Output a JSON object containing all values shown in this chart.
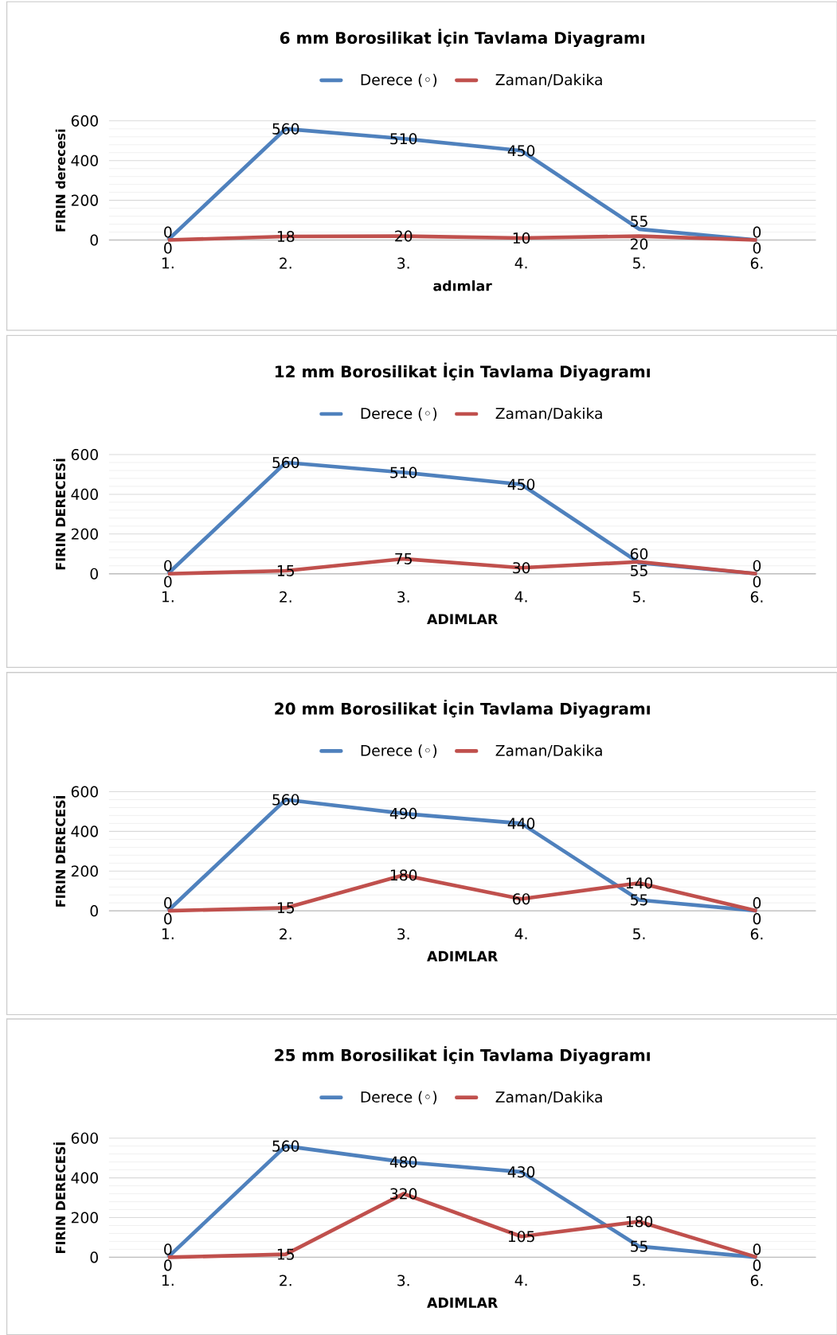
{
  "chart_data": [
    {
      "type": "line",
      "title": "6 mm Borosilikat İçin Tavlama Diyagramı",
      "xlabel": "adımlar",
      "ylabel": "FIRIN derecesi",
      "categories": [
        "1.",
        "2.",
        "3.",
        "4.",
        "5.",
        "6."
      ],
      "series": [
        {
          "name": "Derece (◦)",
          "color": "#4f81bd",
          "values": [
            0,
            560,
            510,
            450,
            55,
            0
          ]
        },
        {
          "name": "Zaman/Dakika",
          "color": "#c0504d",
          "values": [
            0,
            18,
            20,
            10,
            20,
            0
          ]
        }
      ],
      "ylim": [
        0,
        600
      ],
      "yticks": [
        0,
        200,
        400,
        600
      ],
      "grid": "y",
      "legend": "top",
      "data_labels": true
    },
    {
      "type": "line",
      "title": "12 mm Borosilikat İçin Tavlama Diyagramı",
      "xlabel": "ADIMLAR",
      "ylabel": "FIRIN DERECESİ",
      "categories": [
        "1.",
        "2.",
        "3.",
        "4.",
        "5.",
        "6."
      ],
      "series": [
        {
          "name": "Derece (◦)",
          "color": "#4f81bd",
          "values": [
            0,
            560,
            510,
            450,
            55,
            0
          ]
        },
        {
          "name": "Zaman/Dakika",
          "color": "#c0504d",
          "values": [
            0,
            15,
            75,
            30,
            60,
            0
          ]
        }
      ],
      "ylim": [
        0,
        600
      ],
      "yticks": [
        0,
        200,
        400,
        600
      ],
      "grid": "y",
      "legend": "top",
      "data_labels": true
    },
    {
      "type": "line",
      "title": "20 mm Borosilikat İçin Tavlama Diyagramı",
      "xlabel": "ADIMLAR",
      "ylabel": "FIRIN DERECESİ",
      "categories": [
        "1.",
        "2.",
        "3.",
        "4.",
        "5.",
        "6."
      ],
      "series": [
        {
          "name": "Derece (◦)",
          "color": "#4f81bd",
          "values": [
            0,
            560,
            490,
            440,
            55,
            0
          ]
        },
        {
          "name": "Zaman/Dakika",
          "color": "#c0504d",
          "values": [
            0,
            15,
            180,
            60,
            140,
            0
          ]
        }
      ],
      "ylim": [
        0,
        600
      ],
      "yticks": [
        0,
        200,
        400,
        600
      ],
      "grid": "y",
      "legend": "top",
      "data_labels": true
    },
    {
      "type": "line",
      "title": "25 mm Borosilikat İçin Tavlama Diyagramı",
      "xlabel": "ADIMLAR",
      "ylabel": "FIRIN DERECESİ",
      "categories": [
        "1.",
        "2.",
        "3.",
        "4.",
        "5.",
        "6."
      ],
      "series": [
        {
          "name": "Derece (◦)",
          "color": "#4f81bd",
          "values": [
            0,
            560,
            480,
            430,
            55,
            0
          ]
        },
        {
          "name": "Zaman/Dakika",
          "color": "#c0504d",
          "values": [
            0,
            15,
            320,
            105,
            180,
            0
          ]
        }
      ],
      "ylim": [
        0,
        600
      ],
      "yticks": [
        0,
        200,
        400,
        600
      ],
      "grid": "y",
      "legend": "top",
      "data_labels": true
    }
  ]
}
